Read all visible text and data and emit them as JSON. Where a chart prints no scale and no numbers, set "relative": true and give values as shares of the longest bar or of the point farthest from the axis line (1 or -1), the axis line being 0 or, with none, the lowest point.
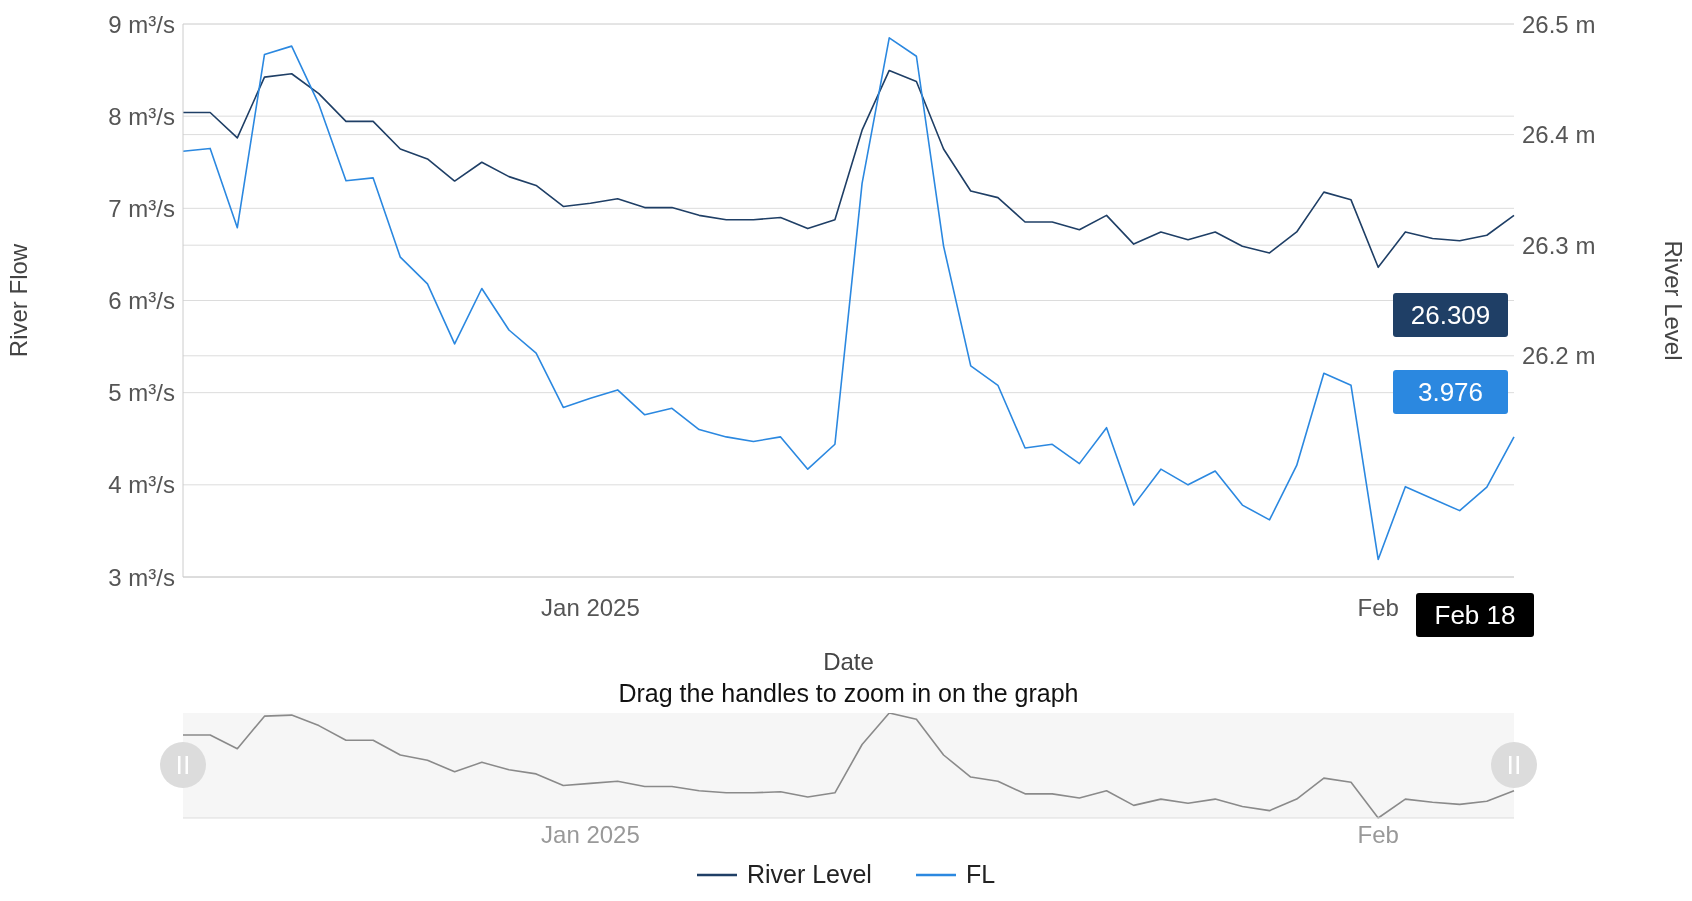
{
  "chart_data": [
    {
      "type": "line",
      "xlabel": "Date",
      "ylabel": "River Flow",
      "y2label": "River Level",
      "categories": [
        null,
        null,
        null,
        null,
        null,
        null,
        null,
        null,
        null,
        null,
        null,
        null,
        null,
        null,
        null,
        "Jan 2025",
        null,
        null,
        null,
        null,
        null,
        null,
        null,
        null,
        null,
        null,
        null,
        null,
        null,
        null,
        null,
        null,
        null,
        null,
        null,
        null,
        null,
        null,
        null,
        null,
        null,
        null,
        null,
        null,
        "Feb",
        null,
        null,
        null,
        null,
        null
      ],
      "series": [
        {
          "name": "River Level",
          "color": "#1f3f66",
          "axis": "y2",
          "values": [
            26.42,
            26.42,
            26.397,
            26.452,
            26.455,
            26.437,
            26.412,
            26.412,
            26.387,
            26.378,
            26.358,
            26.375,
            26.362,
            26.354,
            26.335,
            26.338,
            26.342,
            26.334,
            26.334,
            26.327,
            26.323,
            26.323,
            26.325,
            26.315,
            26.323,
            26.404,
            26.458,
            26.448,
            26.387,
            26.349,
            26.343,
            26.321,
            26.321,
            26.314,
            26.327,
            26.301,
            26.312,
            26.305,
            26.312,
            26.299,
            26.293,
            26.312,
            26.348,
            26.341,
            26.28,
            26.312,
            26.306,
            26.304,
            26.309,
            26.327
          ]
        },
        {
          "name": "FL",
          "color": "#2b88e0",
          "values": [
            7.62,
            7.65,
            6.79,
            8.67,
            8.76,
            8.13,
            7.3,
            7.33,
            6.47,
            6.18,
            5.53,
            6.13,
            5.68,
            5.43,
            4.84,
            4.94,
            5.03,
            4.76,
            4.83,
            4.6,
            4.52,
            4.47,
            4.52,
            4.17,
            4.44,
            7.27,
            8.85,
            8.65,
            6.59,
            5.29,
            5.08,
            4.4,
            4.44,
            4.23,
            4.62,
            3.78,
            4.17,
            4,
            4.15,
            3.78,
            3.62,
            4.21,
            5.21,
            5.08,
            3.19,
            3.98,
            3.85,
            3.72,
            3.976,
            4.52
          ]
        }
      ],
      "ylim": [
        3,
        9
      ],
      "yticks": [
        {
          "value": 3,
          "label": "3 m³/s"
        },
        {
          "value": 4,
          "label": "4 m³/s"
        },
        {
          "value": 5,
          "label": "5 m³/s"
        },
        {
          "value": 6,
          "label": "6 m³/s"
        },
        {
          "value": 7,
          "label": "7 m³/s"
        },
        {
          "value": 8,
          "label": "8 m³/s"
        },
        {
          "value": 9,
          "label": "9 m³/s"
        }
      ],
      "y2lim": [
        26.0,
        26.5
      ],
      "y2ticks": [
        {
          "value": 26.2,
          "label": "26.2 m"
        },
        {
          "value": 26.3,
          "label": "26.3 m"
        },
        {
          "value": 26.4,
          "label": "26.4 m"
        },
        {
          "value": 26.5,
          "label": "26.5 m"
        }
      ],
      "grid": "y",
      "legend": "bottom",
      "annotations": [
        "26.309",
        "3.976",
        "Feb 18"
      ]
    },
    {
      "type": "line",
      "relative": true,
      "categories": [
        null,
        null,
        null,
        null,
        null,
        null,
        null,
        null,
        null,
        null,
        null,
        null,
        null,
        null,
        null,
        "Jan 2025",
        null,
        null,
        null,
        null,
        null,
        null,
        null,
        null,
        null,
        null,
        null,
        null,
        null,
        null,
        null,
        null,
        null,
        null,
        null,
        null,
        null,
        null,
        null,
        null,
        null,
        null,
        null,
        null,
        "Feb",
        null,
        null,
        null,
        null,
        null
      ],
      "series": [
        {
          "color": "#8a8a8a",
          "values": [
            0.79,
            0.79,
            0.66,
            0.97,
            0.98,
            0.88,
            0.74,
            0.74,
            0.6,
            0.55,
            0.44,
            0.53,
            0.46,
            0.42,
            0.31,
            0.33,
            0.35,
            0.3,
            0.3,
            0.26,
            0.24,
            0.24,
            0.25,
            0.2,
            0.24,
            0.7,
            1,
            0.94,
            0.6,
            0.39,
            0.35,
            0.23,
            0.23,
            0.19,
            0.26,
            0.12,
            0.18,
            0.14,
            0.18,
            0.11,
            0.07,
            0.18,
            0.38,
            0.34,
            0,
            0.18,
            0.15,
            0.13,
            0.16,
            0.26
          ]
        }
      ],
      "annotations": [
        "Drag the handles to zoom in on the graph"
      ]
    }
  ]
}
